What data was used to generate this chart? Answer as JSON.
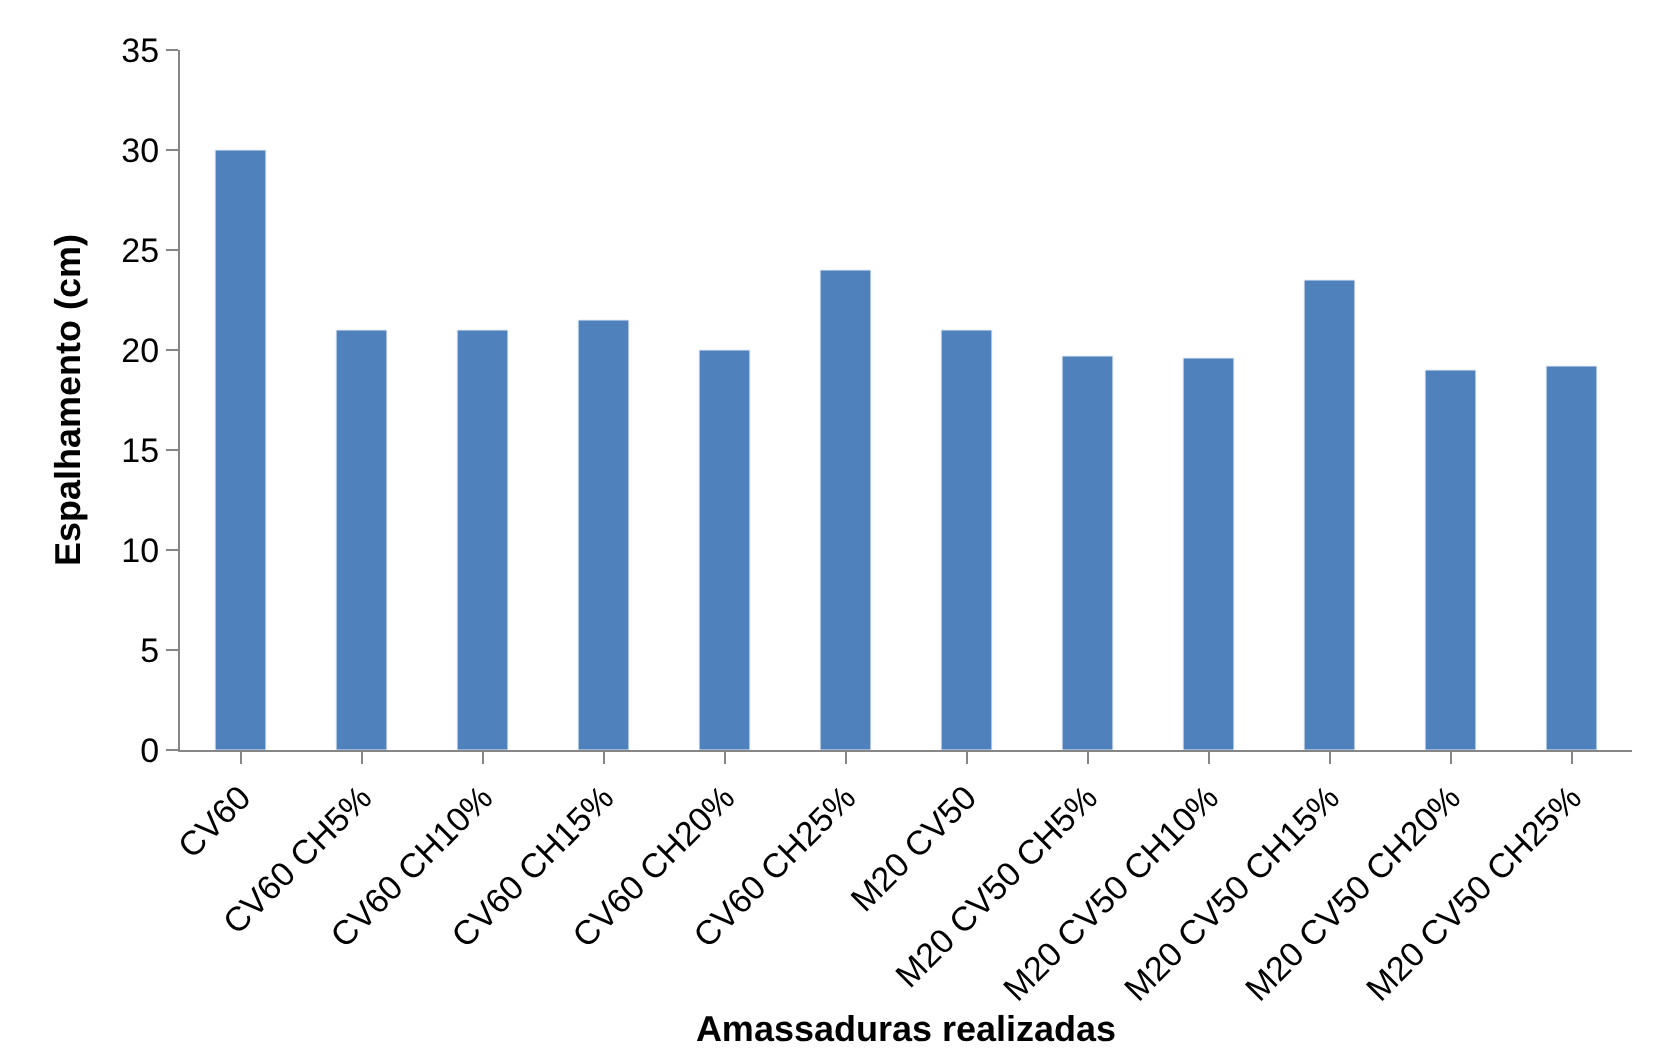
{
  "chart_data": {
    "type": "bar",
    "xlabel": "Amassaduras realizadas",
    "ylabel": "Espalhamento (cm)",
    "categories": [
      "CV60",
      "CV60 CH5%",
      "CV60 CH10%",
      "CV60 CH15%",
      "CV60 CH20%",
      "CV60 CH25%",
      "M20 CV50",
      "M20 CV50 CH5%",
      "M20 CV50 CH10%",
      "M20 CV50 CH15%",
      "M20 CV50 CH20%",
      "M20 CV50 CH25%"
    ],
    "values": [
      30,
      21,
      21,
      21.5,
      20,
      24,
      21,
      19.7,
      19.6,
      23.5,
      19,
      19.2
    ],
    "color": "#4f81bd",
    "ylim": [
      0,
      35
    ],
    "yticks": [
      0,
      5,
      10,
      15,
      20,
      25,
      30,
      35
    ]
  }
}
